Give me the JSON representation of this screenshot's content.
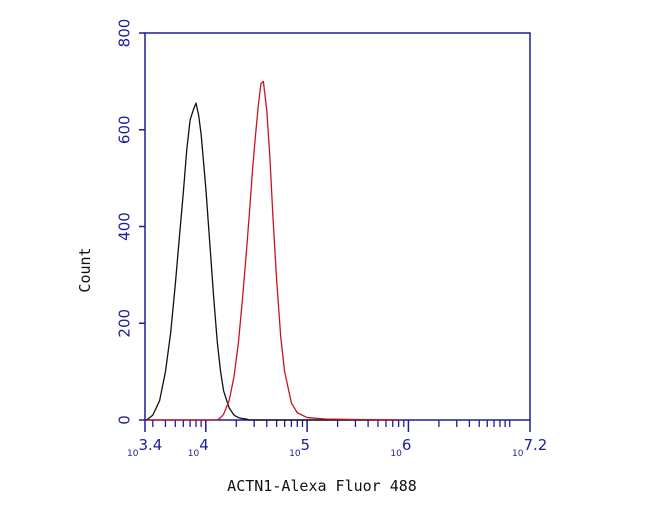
{
  "chart_data": {
    "type": "line",
    "x_label": "ACTN1-Alexa Fluor 488",
    "y_label": "Count",
    "xscale": "log",
    "xlim": [
      2511.886,
      15848931.9
    ],
    "ylim": [
      0,
      800
    ],
    "xticks": [
      {
        "value": 2511.886,
        "label": "10",
        "exponent": "3.4"
      },
      {
        "value": 10000,
        "label": "10",
        "exponent": "4"
      },
      {
        "value": 100000,
        "label": "10",
        "exponent": "5"
      },
      {
        "value": 1000000,
        "label": "10",
        "exponent": "6"
      },
      {
        "value": 15848931.9,
        "label": "10",
        "exponent": "7.2"
      }
    ],
    "minor_xticks": [
      3000,
      4000,
      5000,
      6000,
      7000,
      8000,
      9000,
      20000,
      30000,
      40000,
      50000,
      60000,
      70000,
      80000,
      90000,
      200000,
      300000,
      400000,
      500000,
      600000,
      700000,
      800000,
      900000,
      2000000,
      3000000,
      4000000,
      5000000,
      6000000,
      7000000,
      8000000,
      9000000,
      10000000
    ],
    "yticks": [
      0,
      200,
      400,
      600,
      800
    ],
    "axis_color": "#1c1c9c",
    "x": [
      2600,
      3000,
      3500,
      4000,
      4500,
      5000,
      5500,
      6000,
      6500,
      7000,
      7500,
      8000,
      8500,
      9000,
      10000,
      11000,
      12000,
      13000,
      14000,
      15000,
      17000,
      19000,
      21000,
      23000,
      25000,
      27000,
      29000,
      31000,
      33000,
      35000,
      37000,
      40000,
      43000,
      46000,
      50000,
      55000,
      60000,
      70000,
      80000,
      100000,
      150000,
      300000,
      800000
    ],
    "series": [
      {
        "color": "#111111",
        "values": [
          0,
          10,
          40,
          100,
          180,
          280,
          380,
          470,
          560,
          620,
          640,
          655,
          630,
          590,
          480,
          360,
          250,
          160,
          100,
          60,
          25,
          10,
          5,
          3,
          2,
          0,
          0,
          0,
          0,
          0,
          0,
          0,
          0,
          0,
          0,
          0,
          0,
          0,
          0,
          0,
          0,
          0,
          0
        ]
      },
      {
        "color": "#c8141e",
        "values": [
          0,
          0,
          0,
          0,
          0,
          0,
          0,
          0,
          0,
          0,
          0,
          0,
          0,
          0,
          0,
          0,
          0,
          0,
          5,
          12,
          40,
          90,
          160,
          250,
          340,
          430,
          520,
          590,
          650,
          695,
          700,
          640,
          540,
          420,
          290,
          170,
          100,
          35,
          15,
          5,
          2,
          1,
          0
        ]
      }
    ]
  }
}
